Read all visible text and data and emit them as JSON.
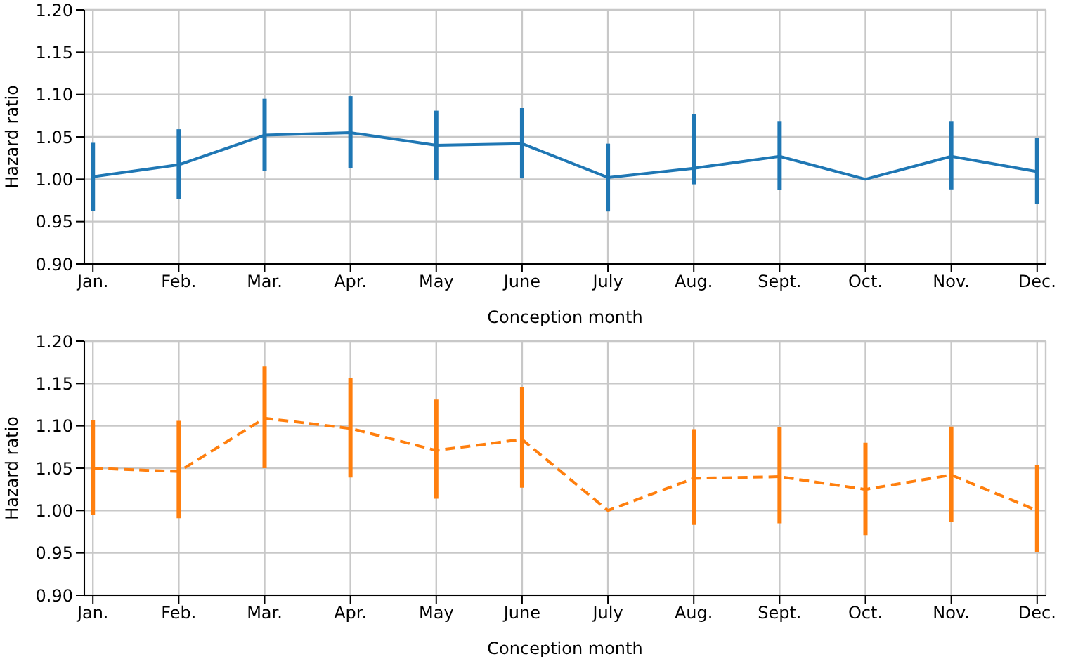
{
  "chart_data": [
    {
      "type": "line",
      "xlabel": "Conception month",
      "ylabel": "Hazard ratio",
      "categories": [
        "Jan.",
        "Feb.",
        "Mar.",
        "Apr.",
        "May",
        "June",
        "July",
        "Aug.",
        "Sept.",
        "Oct.",
        "Nov.",
        "Dec."
      ],
      "ylim": [
        0.9,
        1.2
      ],
      "yticks": [
        {
          "value": 0.9,
          "label": "0.90"
        },
        {
          "value": 0.95,
          "label": "0.95"
        },
        {
          "value": 1.0,
          "label": "1.00"
        },
        {
          "value": 1.05,
          "label": "1.05"
        },
        {
          "value": 1.1,
          "label": "1.10"
        },
        {
          "value": 1.15,
          "label": "1.15"
        },
        {
          "value": 1.2,
          "label": "1.20"
        }
      ],
      "grid": true,
      "marker": "none",
      "line_style": "solid",
      "series": [
        {
          "color": "#1f77b4",
          "values": [
            1.003,
            1.017,
            1.052,
            1.055,
            1.04,
            1.042,
            1.002,
            1.013,
            1.027,
            1.0,
            1.027,
            1.009
          ],
          "errors": [
            [
              0.963,
              1.043
            ],
            [
              0.977,
              1.059
            ],
            [
              1.01,
              1.095
            ],
            [
              1.013,
              1.098
            ],
            [
              0.999,
              1.081
            ],
            [
              1.001,
              1.084
            ],
            [
              0.962,
              1.042
            ],
            [
              0.994,
              1.077
            ],
            [
              0.987,
              1.068
            ],
            null,
            [
              0.988,
              1.068
            ],
            [
              0.971,
              1.049
            ]
          ]
        }
      ]
    },
    {
      "type": "line",
      "xlabel": "Conception month",
      "ylabel": "Hazard ratio",
      "categories": [
        "Jan.",
        "Feb.",
        "Mar.",
        "Apr.",
        "May",
        "June",
        "July",
        "Aug.",
        "Sept.",
        "Oct.",
        "Nov.",
        "Dec."
      ],
      "ylim": [
        0.9,
        1.2
      ],
      "yticks": [
        {
          "value": 0.9,
          "label": "0.90"
        },
        {
          "value": 0.95,
          "label": "0.95"
        },
        {
          "value": 1.0,
          "label": "1.00"
        },
        {
          "value": 1.05,
          "label": "1.05"
        },
        {
          "value": 1.1,
          "label": "1.10"
        },
        {
          "value": 1.15,
          "label": "1.15"
        },
        {
          "value": 1.2,
          "label": "1.20"
        }
      ],
      "grid": true,
      "marker": "none",
      "line_style": "dashed",
      "series": [
        {
          "color": "#ff7f0e",
          "values": [
            1.05,
            1.046,
            1.109,
            1.097,
            1.071,
            1.084,
            1.0,
            1.038,
            1.04,
            1.025,
            1.042,
            1.0
          ],
          "errors": [
            [
              0.995,
              1.107
            ],
            [
              0.991,
              1.106
            ],
            [
              1.05,
              1.17
            ],
            [
              1.039,
              1.157
            ],
            [
              1.014,
              1.131
            ],
            [
              1.027,
              1.146
            ],
            null,
            [
              0.983,
              1.096
            ],
            [
              0.985,
              1.098
            ],
            [
              0.971,
              1.08
            ],
            [
              0.987,
              1.099
            ],
            [
              0.951,
              1.054
            ]
          ]
        }
      ]
    }
  ]
}
